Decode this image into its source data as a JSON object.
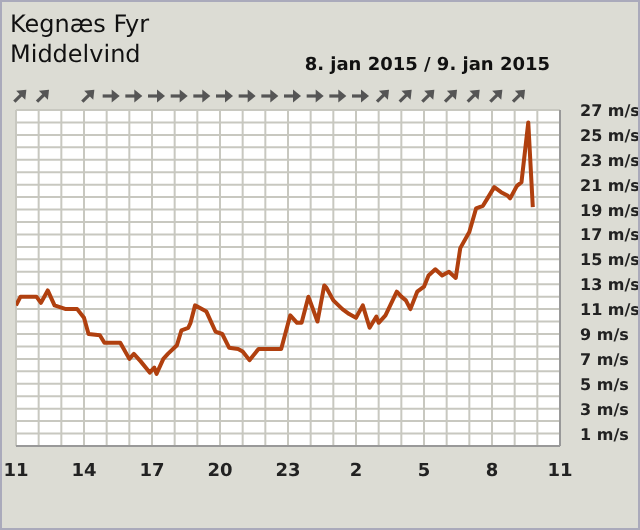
{
  "chart_data": {
    "type": "line",
    "title": "Kegnæs Fyr",
    "subtitle": "Middelvind",
    "annotations": [
      "8. jan 2015 / 9. jan 2015"
    ],
    "xlim": [
      "2015-01-08T11:00",
      "2015-01-09T11:00"
    ],
    "xticks": [
      {
        "value": "2015-01-08T11:00",
        "label": "11"
      },
      {
        "value": "2015-01-08T12:00",
        "label": null
      },
      {
        "value": "2015-01-08T13:00",
        "label": null
      },
      {
        "value": "2015-01-08T14:00",
        "label": "14"
      },
      {
        "value": "2015-01-08T15:00",
        "label": null
      },
      {
        "value": "2015-01-08T16:00",
        "label": null
      },
      {
        "value": "2015-01-08T17:00",
        "label": "17"
      },
      {
        "value": "2015-01-08T18:00",
        "label": null
      },
      {
        "value": "2015-01-08T19:00",
        "label": null
      },
      {
        "value": "2015-01-08T20:00",
        "label": "20"
      },
      {
        "value": "2015-01-08T21:00",
        "label": null
      },
      {
        "value": "2015-01-08T22:00",
        "label": null
      },
      {
        "value": "2015-01-08T23:00",
        "label": "23"
      },
      {
        "value": "2015-01-09T00:00",
        "label": null
      },
      {
        "value": "2015-01-09T01:00",
        "label": null
      },
      {
        "value": "2015-01-09T02:00",
        "label": "2"
      },
      {
        "value": "2015-01-09T03:00",
        "label": null
      },
      {
        "value": "2015-01-09T04:00",
        "label": null
      },
      {
        "value": "2015-01-09T05:00",
        "label": "5"
      },
      {
        "value": "2015-01-09T06:00",
        "label": null
      },
      {
        "value": "2015-01-09T07:00",
        "label": null
      },
      {
        "value": "2015-01-09T08:00",
        "label": "8"
      },
      {
        "value": "2015-01-09T09:00",
        "label": null
      },
      {
        "value": "2015-01-09T10:00",
        "label": null
      },
      {
        "value": "2015-01-09T11:00",
        "label": "11"
      }
    ],
    "ylim": [
      0,
      27
    ],
    "yticks": [
      {
        "value": 1,
        "label": "1 m/s"
      },
      {
        "value": 2,
        "label": null
      },
      {
        "value": 3,
        "label": "3 m/s"
      },
      {
        "value": 4,
        "label": null
      },
      {
        "value": 5,
        "label": "5 m/s"
      },
      {
        "value": 6,
        "label": null
      },
      {
        "value": 7,
        "label": "7 m/s"
      },
      {
        "value": 8,
        "label": null
      },
      {
        "value": 9,
        "label": "9 m/s"
      },
      {
        "value": 10,
        "label": null
      },
      {
        "value": 11,
        "label": "11 m/s"
      },
      {
        "value": 12,
        "label": null
      },
      {
        "value": 13,
        "label": "13 m/s"
      },
      {
        "value": 14,
        "label": null
      },
      {
        "value": 15,
        "label": "15 m/s"
      },
      {
        "value": 16,
        "label": null
      },
      {
        "value": 17,
        "label": "17 m/s"
      },
      {
        "value": 18,
        "label": null
      },
      {
        "value": 19,
        "label": "19 m/s"
      },
      {
        "value": 20,
        "label": null
      },
      {
        "value": 21,
        "label": "21 m/s"
      },
      {
        "value": 22,
        "label": null
      },
      {
        "value": 23,
        "label": "23 m/s"
      },
      {
        "value": 24,
        "label": null
      },
      {
        "value": 25,
        "label": "25 m/s"
      },
      {
        "value": 26,
        "label": null
      },
      {
        "value": 27,
        "label": "27 m/s"
      }
    ],
    "grid": true,
    "series": [
      {
        "color": "#b0400f",
        "x": [
          "2015-01-08T11:00",
          "2015-01-08T11:12",
          "2015-01-08T11:54",
          "2015-01-08T12:06",
          "2015-01-08T12:24",
          "2015-01-08T12:42",
          "2015-01-08T13:12",
          "2015-01-08T13:42",
          "2015-01-08T14:00",
          "2015-01-08T14:12",
          "2015-01-08T14:42",
          "2015-01-08T14:54",
          "2015-01-08T15:36",
          "2015-01-08T16:00",
          "2015-01-08T16:12",
          "2015-01-08T16:30",
          "2015-01-08T16:54",
          "2015-01-08T17:06",
          "2015-01-08T17:12",
          "2015-01-08T17:30",
          "2015-01-08T17:42",
          "2015-01-08T18:06",
          "2015-01-08T18:18",
          "2015-01-08T18:36",
          "2015-01-08T18:42",
          "2015-01-08T18:54",
          "2015-01-08T19:12",
          "2015-01-08T19:24",
          "2015-01-08T19:48",
          "2015-01-08T20:06",
          "2015-01-08T20:24",
          "2015-01-08T20:48",
          "2015-01-08T21:00",
          "2015-01-08T21:18",
          "2015-01-08T21:42",
          "2015-01-08T22:42",
          "2015-01-08T23:06",
          "2015-01-08T23:24",
          "2015-01-08T23:36",
          "2015-01-08T23:54",
          "2015-01-09T00:18",
          "2015-01-09T00:36",
          "2015-01-09T00:42",
          "2015-01-09T01:00",
          "2015-01-09T01:24",
          "2015-01-09T01:42",
          "2015-01-09T02:00",
          "2015-01-09T02:18",
          "2015-01-09T02:36",
          "2015-01-09T02:54",
          "2015-01-09T03:00",
          "2015-01-09T03:18",
          "2015-01-09T03:48",
          "2015-01-09T04:00",
          "2015-01-09T04:12",
          "2015-01-09T04:24",
          "2015-01-09T04:42",
          "2015-01-09T05:00",
          "2015-01-09T05:12",
          "2015-01-09T05:30",
          "2015-01-09T05:48",
          "2015-01-09T06:06",
          "2015-01-09T06:24",
          "2015-01-09T06:36",
          "2015-01-09T07:00",
          "2015-01-09T07:18",
          "2015-01-09T07:36",
          "2015-01-09T07:48",
          "2015-01-09T08:06",
          "2015-01-09T08:24",
          "2015-01-09T08:42",
          "2015-01-09T08:48",
          "2015-01-09T09:06",
          "2015-01-09T09:18",
          "2015-01-09T09:36",
          "2015-01-09T09:48"
        ],
        "values": [
          11.3,
          12,
          12,
          11.5,
          12.5,
          11.3,
          11,
          11,
          10.3,
          9,
          8.9,
          8.3,
          8.3,
          7,
          7.4,
          6.8,
          5.9,
          6.3,
          5.8,
          7,
          7.4,
          8.1,
          9.3,
          9.5,
          9.9,
          11.3,
          11,
          10.8,
          9.2,
          9,
          7.9,
          7.8,
          7.6,
          6.9,
          7.8,
          7.8,
          10.5,
          9.9,
          9.9,
          12,
          10,
          12.9,
          12.7,
          11.7,
          11,
          10.6,
          10.3,
          11.3,
          9.5,
          10.4,
          9.9,
          10.5,
          12.4,
          12,
          11.7,
          11,
          12.4,
          12.8,
          13.7,
          14.2,
          13.7,
          14,
          13.5,
          15.9,
          17.2,
          19.1,
          19.3,
          19.9,
          20.8,
          20.4,
          20.1,
          19.9,
          20.9,
          21.2,
          26,
          19.2
        ]
      }
    ]
  }
}
